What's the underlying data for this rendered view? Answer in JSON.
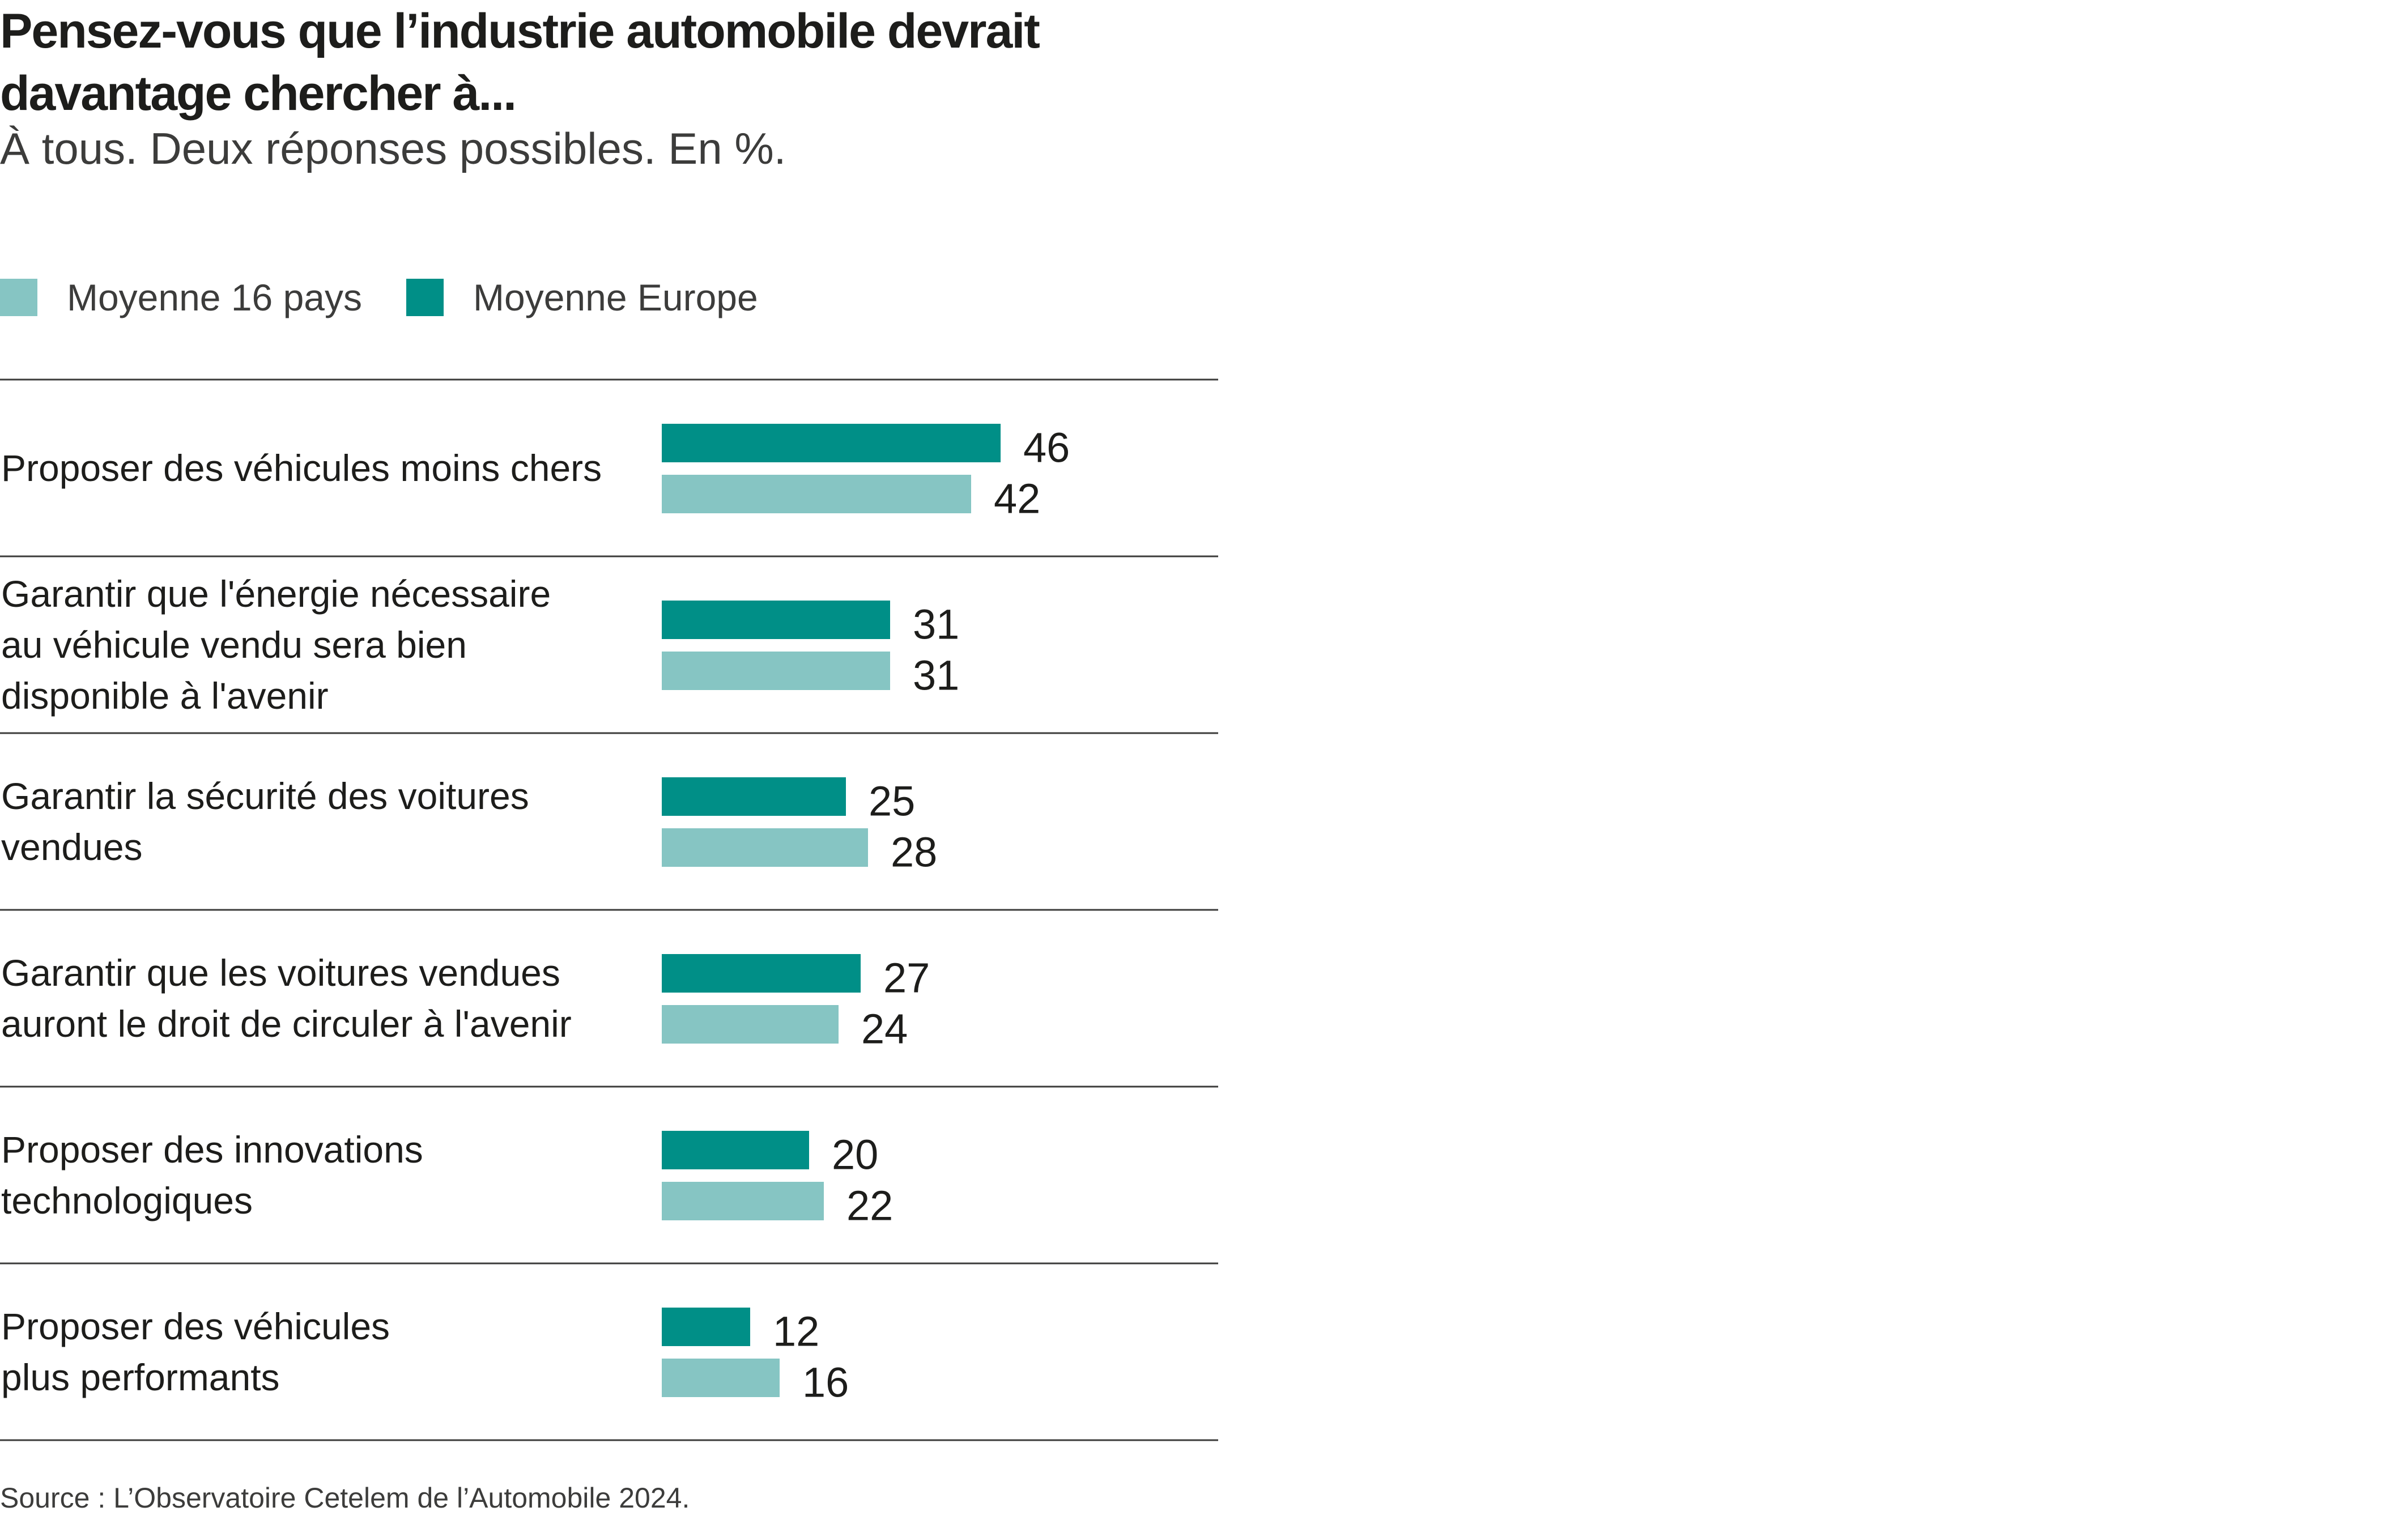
{
  "chart_data": {
    "type": "bar",
    "orientation": "horizontal",
    "title": "Pensez-vous que l’industrie automobile devrait davantage chercher à...",
    "subtitle": "À tous. Deux réponses possibles. En %.",
    "categories": [
      [
        "Proposer des véhicules moins chers"
      ],
      [
        "Garantir que l'énergie nécessaire",
        "au véhicule vendu sera bien",
        "disponible à l'avenir"
      ],
      [
        "Garantir la sécurité des voitures",
        "vendues"
      ],
      [
        "Garantir que les voitures vendues",
        "auront le droit de circuler à l'avenir"
      ],
      [
        "Proposer des innovations",
        "technologiques"
      ],
      [
        "Proposer des véhicules",
        "plus performants"
      ]
    ],
    "series": [
      {
        "name": "Moyenne Europe",
        "color": "#008f87",
        "values": [
          46,
          31,
          25,
          27,
          20,
          12
        ]
      },
      {
        "name": "Moyenne 16 pays",
        "color": "#86c5c3",
        "values": [
          42,
          31,
          28,
          24,
          22,
          16
        ]
      }
    ],
    "legend": [
      {
        "label": "Moyenne 16 pays",
        "color": "#86c5c3"
      },
      {
        "label": "Moyenne Europe",
        "color": "#008f87"
      }
    ],
    "xlim": [
      0,
      100
    ],
    "grid": false,
    "data_labels": true,
    "source": "Source : L’Observatoire Cetelem de l’Automobile 2024."
  }
}
